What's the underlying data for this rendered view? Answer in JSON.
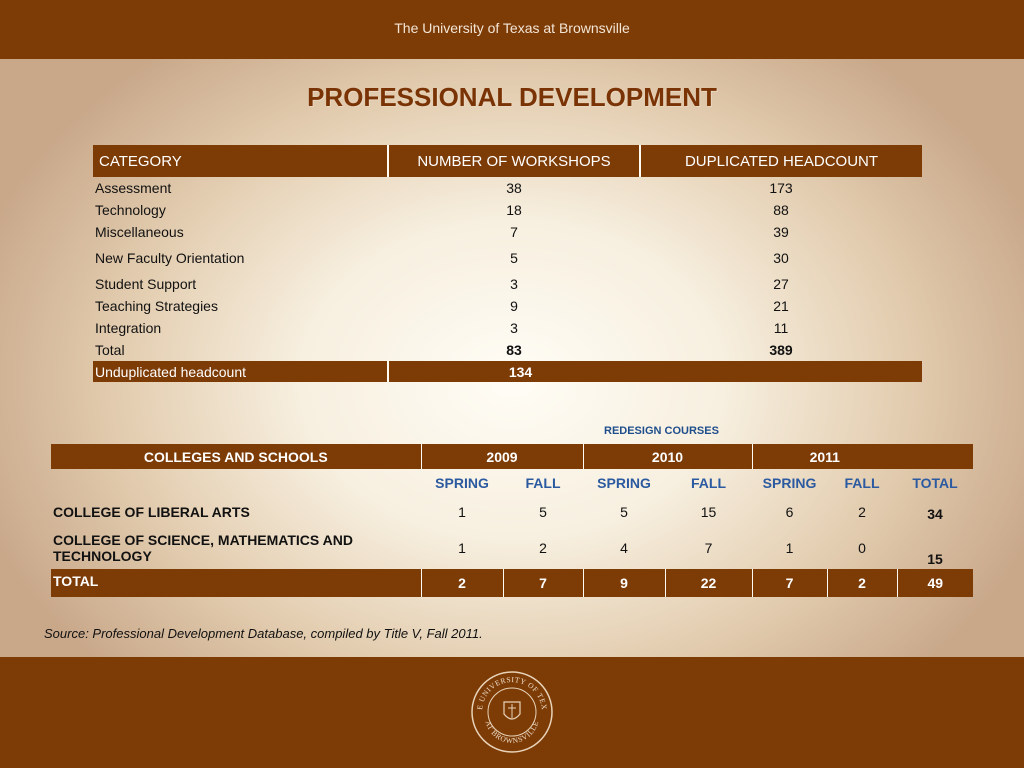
{
  "header": {
    "university": "The University of Texas at Brownsville"
  },
  "title": "PROFESSIONAL DEVELOPMENT",
  "workshops_table": {
    "headers": [
      "CATEGORY",
      "NUMBER OF WORKSHOPS",
      "DUPLICATED HEADCOUNT"
    ],
    "rows": [
      {
        "category": "Assessment",
        "workshops": "38",
        "headcount": "173"
      },
      {
        "category": "Technology",
        "workshops": "18",
        "headcount": "88"
      },
      {
        "category": "Miscellaneous",
        "workshops": "7",
        "headcount": "39"
      },
      {
        "category": "New Faculty Orientation",
        "workshops": "5",
        "headcount": "30"
      },
      {
        "category": "Student Support",
        "workshops": "3",
        "headcount": "27"
      },
      {
        "category": "Teaching Strategies",
        "workshops": "9",
        "headcount": "21"
      },
      {
        "category": "Integration",
        "workshops": "3",
        "headcount": "11"
      }
    ],
    "total": {
      "label": "Total",
      "workshops": "83",
      "headcount": "389"
    },
    "unduplicated": {
      "label": "Unduplicated headcount",
      "value": "134"
    }
  },
  "redesign_label": "REDESIGN COURSES",
  "redesign_table": {
    "header": [
      "COLLEGES AND SCHOOLS",
      "2009",
      "2010",
      "2011"
    ],
    "subheaders": [
      "SPRING",
      "FALL",
      "SPRING",
      "FALL",
      "SPRING",
      "FALL",
      "TOTAL"
    ],
    "rows": [
      {
        "college": "COLLEGE OF LIBERAL ARTS",
        "values": [
          "1",
          "5",
          "5",
          "15",
          "6",
          "2"
        ],
        "total": "34"
      },
      {
        "college": "COLLEGE OF SCIENCE, MATHEMATICS  AND TECHNOLOGY",
        "values": [
          "1",
          "2",
          "4",
          "7",
          "1",
          "0"
        ],
        "total": "15"
      }
    ],
    "total_row": {
      "label": "TOTAL",
      "values": [
        "2",
        "7",
        "9",
        "22",
        "7",
        "2"
      ],
      "total": "49"
    }
  },
  "source_note": "Source: Professional Development Database, compiled by Title V, Fall 2011.",
  "seal": {
    "top_text": "THE UNIVERSITY OF TEXAS",
    "bottom_text": "AT BROWNSVILLE"
  },
  "colors": {
    "brand_brown": "#7d3b06",
    "subheader_blue": "#2b5aa0",
    "title_brown": "#7a3305"
  }
}
